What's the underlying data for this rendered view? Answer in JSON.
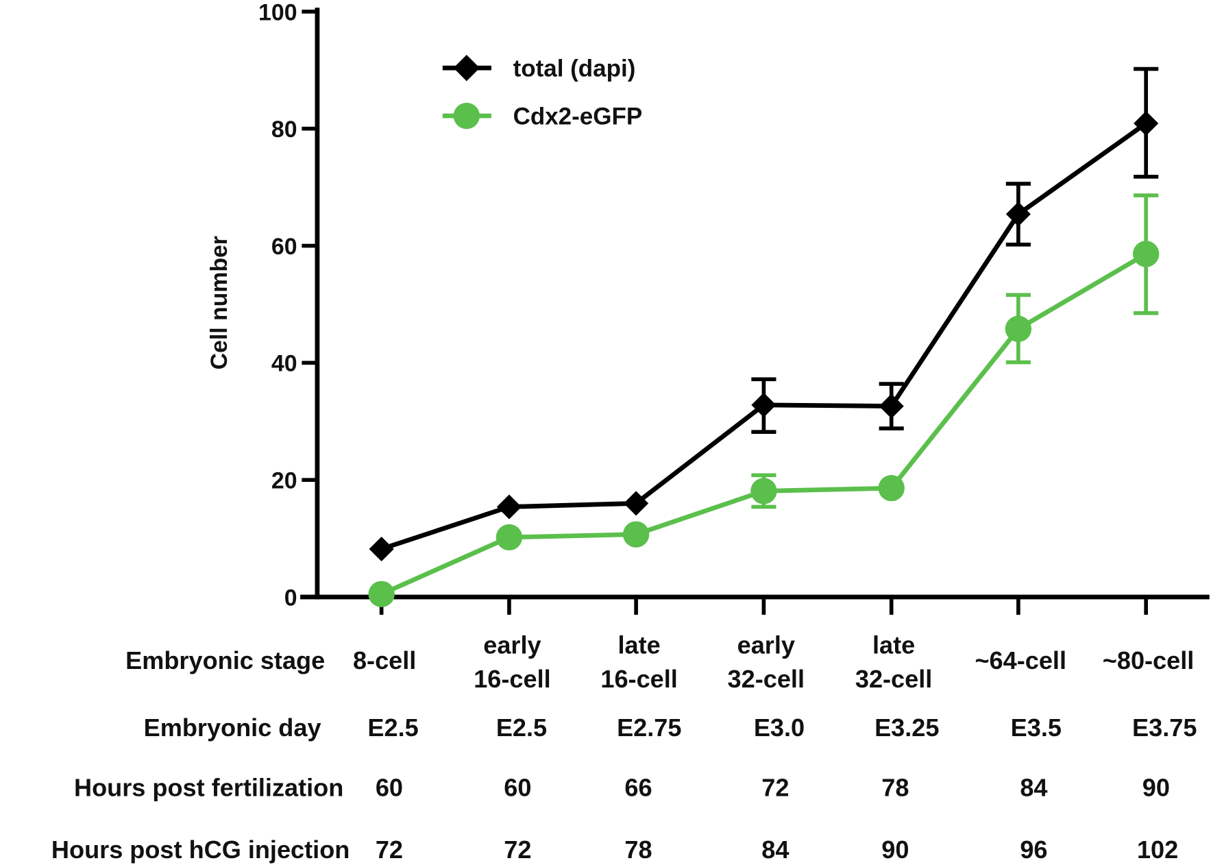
{
  "chart_data": {
    "type": "line",
    "title": "",
    "xlabel": "",
    "ylabel": "Cell number",
    "ylim": [
      0,
      100
    ],
    "yticks": [
      0,
      20,
      40,
      60,
      80,
      100
    ],
    "ytick_labels": [
      "0",
      "20",
      "40",
      "60",
      "80",
      "100"
    ],
    "legend_position": "top-left",
    "categories": [
      "8-cell",
      "early 16-cell",
      "late 16-cell",
      "early 32-cell",
      "late 32-cell",
      "~64-cell",
      "~80-cell"
    ],
    "series": [
      {
        "name": "total (dapi)",
        "color": "#000000",
        "marker": "diamond",
        "values": [
          8.2,
          15.4,
          16.0,
          32.8,
          32.6,
          65.4,
          80.9
        ],
        "error_upper": [
          null,
          null,
          null,
          37.2,
          36.4,
          70.6,
          90.2
        ],
        "error_lower": [
          null,
          null,
          null,
          28.2,
          28.8,
          60.2,
          71.8
        ]
      },
      {
        "name": "Cdx2-eGFP",
        "color": "#5bbf4c",
        "marker": "circle",
        "values": [
          0.5,
          10.2,
          10.7,
          18.1,
          18.6,
          45.8,
          58.6
        ],
        "error_upper": [
          null,
          null,
          null,
          20.8,
          null,
          51.6,
          68.6
        ],
        "error_lower": [
          null,
          null,
          null,
          15.4,
          null,
          40.1,
          48.5
        ]
      }
    ],
    "table_rows": [
      {
        "label": "Embryonic stage",
        "cells": [
          [
            "8-cell"
          ],
          [
            "early",
            "16-cell"
          ],
          [
            "late",
            "16-cell"
          ],
          [
            "early",
            "32-cell"
          ],
          [
            "late",
            "32-cell"
          ],
          [
            "~64-cell"
          ],
          [
            "~80-cell"
          ]
        ]
      },
      {
        "label": "Embryonic day",
        "cells": [
          [
            "E2.5"
          ],
          [
            "E2.5"
          ],
          [
            "E2.75"
          ],
          [
            "E3.0"
          ],
          [
            "E3.25"
          ],
          [
            "E3.5"
          ],
          [
            "E3.75"
          ]
        ]
      },
      {
        "label": "Hours post fertilization",
        "cells": [
          [
            "60"
          ],
          [
            "60"
          ],
          [
            "66"
          ],
          [
            "72"
          ],
          [
            "78"
          ],
          [
            "84"
          ],
          [
            "90"
          ]
        ]
      },
      {
        "label": "Hours post hCG injection",
        "cells": [
          [
            "72"
          ],
          [
            "72"
          ],
          [
            "78"
          ],
          [
            "84"
          ],
          [
            "90"
          ],
          [
            "96"
          ],
          [
            "102"
          ]
        ]
      }
    ]
  }
}
